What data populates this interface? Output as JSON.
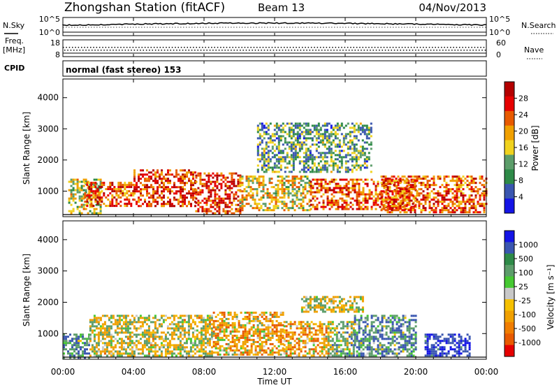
{
  "header": {
    "title": "Zhongshan Station (fitACF)",
    "beam": "Beam 13",
    "date": "04/Nov/2013"
  },
  "summary_panels": {
    "nsky_label": "N.Sky",
    "nsky_top": "10^5",
    "nsky_bottom": "10^0",
    "nsearch_label": "N.Search",
    "nsearch_top": "10^5",
    "nsearch_bottom": "10^0",
    "freq_label_1": "Freq.",
    "freq_label_2": "[MHz]",
    "freq_top": "18",
    "freq_bottom": "8",
    "nave_label": "Nave",
    "nave_top": "60",
    "nave_bottom": "0",
    "cpid_label": "CPID",
    "cpid_text": "normal (fast stereo) 153"
  },
  "axis": {
    "x_label": "Time UT",
    "x_ticks": [
      "00:00",
      "04:00",
      "08:00",
      "12:00",
      "16:00",
      "20:00",
      "00:00"
    ]
  },
  "colors": {
    "power": [
      "#1414e6",
      "#3a56b0",
      "#2e8a48",
      "#5c9d6a",
      "#f0d21e",
      "#f0a000",
      "#e85a00",
      "#e60000",
      "#b40000"
    ],
    "velocity": [
      "#e60000",
      "#e85a00",
      "#f07d00",
      "#f0a000",
      "#f5c000",
      "#c8c8c8",
      "#46c832",
      "#5c9d6a",
      "#2e8a48",
      "#3a56b0",
      "#1414e6"
    ]
  },
  "chart_data": [
    {
      "type": "heatmap",
      "panel": "power",
      "ylabel": "Slant Range [km]",
      "y_ticks": [
        1000,
        2000,
        3000,
        4000
      ],
      "ylim": [
        180,
        4600
      ],
      "xlim": [
        "00:00",
        "24:00"
      ],
      "colorbar": {
        "label": "Power [dB]",
        "ticks": [
          4,
          8,
          12,
          16,
          20,
          24,
          28
        ],
        "range": [
          0,
          30
        ]
      },
      "regions": [
        {
          "x": [
            0.3,
            2.2
          ],
          "y": [
            300,
            1400
          ],
          "value": 14
        },
        {
          "x": [
            1.2,
            4.0
          ],
          "y": [
            500,
            1300
          ],
          "value": 22
        },
        {
          "x": [
            4.0,
            7.5
          ],
          "y": [
            500,
            1700
          ],
          "value": 24
        },
        {
          "x": [
            7.5,
            10.0
          ],
          "y": [
            300,
            1600
          ],
          "value": 24
        },
        {
          "x": [
            10.0,
            14.0
          ],
          "y": [
            400,
            1500
          ],
          "value": 16
        },
        {
          "x": [
            14.0,
            20.0
          ],
          "y": [
            400,
            1400
          ],
          "value": 22
        },
        {
          "x": [
            18.0,
            24.0
          ],
          "y": [
            300,
            1500
          ],
          "value": 22
        },
        {
          "x": [
            11.0,
            17.5
          ],
          "y": [
            1600,
            3200
          ],
          "value": 10
        }
      ]
    },
    {
      "type": "heatmap",
      "panel": "velocity",
      "ylabel": "Slant Range [km]",
      "y_ticks": [
        1000,
        2000,
        3000,
        4000
      ],
      "ylim": [
        180,
        4600
      ],
      "xlim": [
        "00:00",
        "24:00"
      ],
      "colorbar": {
        "label": "Velocity [m s⁻¹]",
        "ticks": [
          -1000,
          -500,
          -100,
          -25,
          25,
          100,
          500,
          1000
        ],
        "range": [
          -1200,
          1200
        ]
      },
      "regions": [
        {
          "x": [
            0.0,
            1.5
          ],
          "y": [
            200,
            1000
          ],
          "value": 400
        },
        {
          "x": [
            1.5,
            8.5
          ],
          "y": [
            300,
            1600
          ],
          "value": -60
        },
        {
          "x": [
            8.5,
            12.5
          ],
          "y": [
            300,
            1700
          ],
          "value": -300
        },
        {
          "x": [
            12.5,
            15.0
          ],
          "y": [
            300,
            1400
          ],
          "value": -300
        },
        {
          "x": [
            15.0,
            16.5
          ],
          "y": [
            300,
            1400
          ],
          "value": 150
        },
        {
          "x": [
            16.5,
            20.0
          ],
          "y": [
            300,
            1600
          ],
          "value": 400
        },
        {
          "x": [
            20.5,
            23.0
          ],
          "y": [
            300,
            1000
          ],
          "value": 900
        },
        {
          "x": [
            13.5,
            17.0
          ],
          "y": [
            1700,
            2200
          ],
          "value": 0
        }
      ]
    }
  ]
}
